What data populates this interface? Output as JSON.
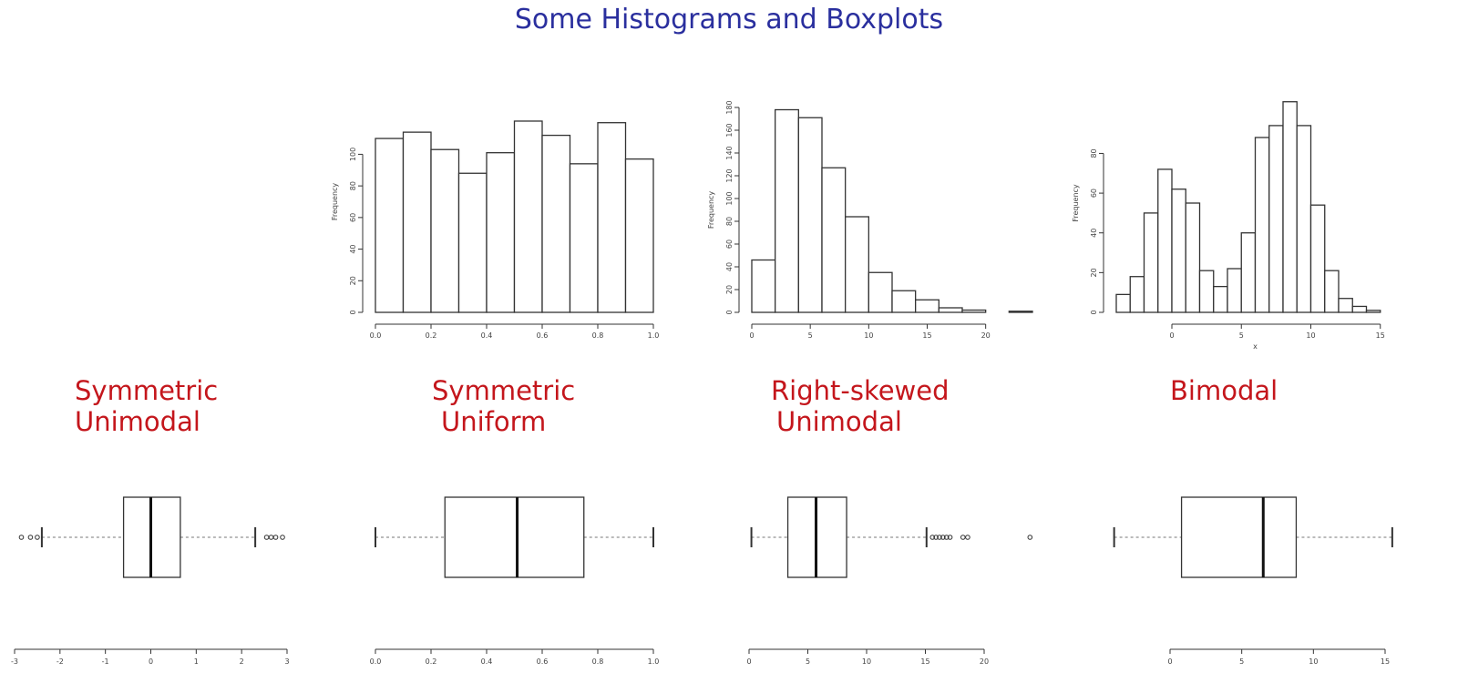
{
  "title": "Some Histograms and Boxplots",
  "colors": {
    "title": "#2a2f9e",
    "category": "#c4161c",
    "ink": "#333333"
  },
  "categories": [
    {
      "line1": "Symmetric",
      "line2": "Unimodal"
    },
    {
      "line1": "Symmetric",
      "line2": "Uniform"
    },
    {
      "line1": "Right-skewed",
      "line2": "Unimodal"
    },
    {
      "line1": "Bimodal",
      "line2": ""
    }
  ],
  "chart_data": [
    {
      "type": "histogram",
      "title": "",
      "xlabel": "",
      "ylabel": "Frequency",
      "bin_edges": [
        0.0,
        0.1,
        0.2,
        0.3,
        0.4,
        0.5,
        0.6,
        0.7,
        0.8,
        0.9,
        1.0
      ],
      "values": [
        110,
        114,
        103,
        88,
        101,
        121,
        112,
        94,
        120,
        97
      ],
      "xlim": [
        0.0,
        1.0
      ],
      "ylim": [
        0,
        140
      ],
      "x_ticks": [
        0.0,
        0.2,
        0.4,
        0.6,
        0.8,
        1.0
      ],
      "x_tick_labels": [
        "0.0",
        "0.2",
        "0.4",
        "0.6",
        "0.8",
        "1.0"
      ],
      "y_ticks": [
        0,
        20,
        40,
        60,
        80,
        100
      ],
      "y_tick_labels": [
        "0",
        "20",
        "40",
        "60",
        "80",
        "100"
      ]
    },
    {
      "type": "histogram",
      "title": "",
      "xlabel": "",
      "ylabel": "Frequency",
      "bin_edges": [
        0,
        2,
        4,
        6,
        8,
        10,
        12,
        14,
        16,
        18,
        20,
        22,
        24
      ],
      "values": [
        46,
        178,
        171,
        127,
        84,
        35,
        19,
        11,
        4,
        2,
        0,
        1
      ],
      "xlim": [
        0,
        24
      ],
      "ylim": [
        0,
        180
      ],
      "x_ticks": [
        0,
        5,
        10,
        15,
        20
      ],
      "x_tick_labels": [
        "0",
        "5",
        "10",
        "15",
        "20"
      ],
      "y_ticks": [
        0,
        20,
        40,
        60,
        80,
        100,
        120,
        140,
        160,
        180
      ],
      "y_tick_labels": [
        "0",
        "20",
        "40",
        "60",
        "80",
        "100",
        "120",
        "140",
        "160",
        "180"
      ]
    },
    {
      "type": "histogram",
      "title": "",
      "xlabel": "x",
      "ylabel": "Frequency",
      "bin_edges": [
        -4,
        -3,
        -2,
        -1,
        0,
        1,
        2,
        3,
        4,
        5,
        6,
        7,
        8,
        9,
        10,
        11,
        12,
        13,
        14,
        15,
        16
      ],
      "values": [
        9,
        18,
        50,
        72,
        62,
        55,
        21,
        13,
        22,
        40,
        88,
        94,
        106,
        94,
        54,
        21,
        7,
        3,
        1,
        0
      ],
      "xlim": [
        -4,
        16
      ],
      "ylim": [
        0,
        110
      ],
      "x_ticks": [
        0,
        5,
        10,
        15
      ],
      "x_tick_labels": [
        "0",
        "5",
        "10",
        "15"
      ],
      "y_ticks": [
        0,
        20,
        40,
        60,
        80
      ],
      "y_tick_labels": [
        "0",
        "20",
        "40",
        "60",
        "80"
      ]
    },
    {
      "type": "boxplot",
      "title": "",
      "min": -2.4,
      "q1": -0.6,
      "median": 0.0,
      "q3": 0.65,
      "max": 2.3,
      "outliers": [
        -2.85,
        -2.65,
        -2.5,
        2.55,
        2.65,
        2.75,
        2.9
      ],
      "xlim": [
        -3,
        3
      ],
      "x_ticks": [
        -3,
        -2,
        -1,
        0,
        1,
        2,
        3
      ],
      "x_tick_labels": [
        "-3",
        "-2",
        "-1",
        "0",
        "1",
        "2",
        "3"
      ]
    },
    {
      "type": "boxplot",
      "title": "",
      "min": 0.0,
      "q1": 0.25,
      "median": 0.51,
      "q3": 0.75,
      "max": 1.0,
      "outliers": [],
      "xlim": [
        0.0,
        1.0
      ],
      "x_ticks": [
        0.0,
        0.2,
        0.4,
        0.6,
        0.8,
        1.0
      ],
      "x_tick_labels": [
        "0.0",
        "0.2",
        "0.4",
        "0.6",
        "0.8",
        "1.0"
      ]
    },
    {
      "type": "boxplot",
      "title": "",
      "min": 0.2,
      "q1": 3.3,
      "median": 5.7,
      "q3": 8.3,
      "max": 15.1,
      "outliers": [
        15.6,
        15.9,
        16.2,
        16.5,
        16.8,
        17.1,
        18.2,
        18.6,
        23.9
      ],
      "xlim": [
        0,
        20
      ],
      "x_ticks": [
        0,
        5,
        10,
        15,
        20
      ],
      "x_tick_labels": [
        "0",
        "5",
        "10",
        "15",
        "20"
      ]
    },
    {
      "type": "boxplot",
      "title": "",
      "min": -3.9,
      "q1": 0.8,
      "median": 6.5,
      "q3": 8.8,
      "max": 15.5,
      "outliers": [],
      "xlim": [
        0,
        15
      ],
      "x_ticks": [
        0,
        5,
        10,
        15
      ],
      "x_tick_labels": [
        "0",
        "5",
        "10",
        "15"
      ]
    }
  ]
}
